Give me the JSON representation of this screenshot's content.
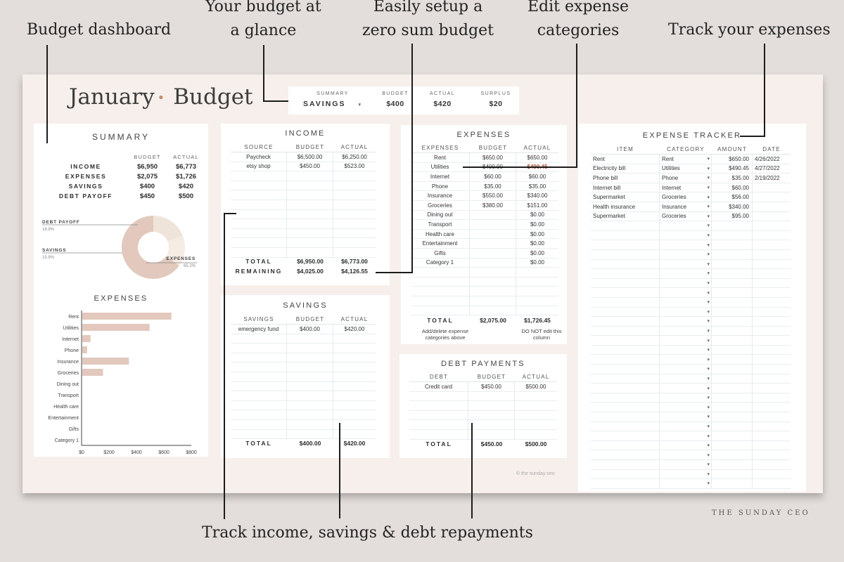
{
  "callouts": {
    "dashboard": "Budget dashboard",
    "glance": [
      "Your budget at",
      "a glance"
    ],
    "zero_sum": [
      "Easily setup a",
      "zero sum budget"
    ],
    "edit_cats": [
      "Edit expense",
      "categories"
    ],
    "track_expenses": "Track your expenses",
    "track_income": "Track income, savings & debt repayments"
  },
  "title": {
    "month": "January",
    "word": "Budget"
  },
  "topbox": {
    "summary_label": "Summary",
    "summary_value": "SAVINGS",
    "budget_label": "Budget",
    "budget_value": "$400",
    "actual_label": "Actual",
    "actual_value": "$420",
    "surplus_label": "Surplus",
    "surplus_value": "$20"
  },
  "summary": {
    "title": "Summary",
    "col_budget": "BUDGET",
    "col_actual": "ACTUAL",
    "rows": [
      {
        "label": "INCOME",
        "budget": "$6,950",
        "actual": "$6,773"
      },
      {
        "label": "EXPENSES",
        "budget": "$2,075",
        "actual": "$1,726"
      },
      {
        "label": "SAVINGS",
        "budget": "$400",
        "actual": "$420"
      },
      {
        "label": "DEBT PAYOFF",
        "budget": "$450",
        "actual": "$500"
      }
    ],
    "donut": [
      {
        "label": "DEBT PAYOFF",
        "pct": "18.9%",
        "value": 18.9,
        "color": "#efe4da"
      },
      {
        "label": "SAVINGS",
        "pct": "15.9%",
        "value": 15.9,
        "color": "#f5ece4"
      },
      {
        "label": "EXPENSES",
        "pct": "65.2%",
        "value": 65.2,
        "color": "#e2c8bd"
      }
    ],
    "expenses_title": "Expenses",
    "bars": [
      {
        "label": "Rent",
        "value": 650
      },
      {
        "label": "Utilities",
        "value": 490.45
      },
      {
        "label": "Internet",
        "value": 60
      },
      {
        "label": "Phone",
        "value": 35
      },
      {
        "label": "Insurance",
        "value": 340
      },
      {
        "label": "Groceries",
        "value": 151
      },
      {
        "label": "Dining out",
        "value": 0
      },
      {
        "label": "Transport",
        "value": 0
      },
      {
        "label": "Health care",
        "value": 0
      },
      {
        "label": "Entertainment",
        "value": 0
      },
      {
        "label": "Gifts",
        "value": 0
      },
      {
        "label": "Category 1",
        "value": 0
      }
    ],
    "bar_ticks": [
      "$0",
      "$200",
      "$400",
      "$600",
      "$800"
    ],
    "bar_max": 800,
    "bar_color": "#e3c8bd"
  },
  "income": {
    "title": "Income",
    "headers": [
      "SOURCE",
      "BUDGET",
      "ACTUAL"
    ],
    "rows": [
      [
        "Paycheck",
        "$6,500.00",
        "$6,250.00"
      ],
      [
        "etsy shop",
        "$450.00",
        "$523.00"
      ]
    ],
    "total_label": "TOTAL",
    "total_budget": "$6,950.00",
    "total_actual": "$6,773.00",
    "remaining_label": "REMAINING",
    "remaining_budget": "$4,025.00",
    "remaining_actual": "$4,126.55"
  },
  "savings": {
    "title": "Savings",
    "headers": [
      "SAVINGS",
      "BUDGET",
      "ACTUAL"
    ],
    "rows": [
      [
        "emergency fund",
        "$400.00",
        "$420.00"
      ]
    ],
    "total_label": "TOTAL",
    "total_budget": "$400.00",
    "total_actual": "$420.00"
  },
  "expenses": {
    "title": "Expenses",
    "headers": [
      "EXPENSES",
      "BUDGET",
      "ACTUAL"
    ],
    "rows": [
      [
        "Rent",
        "$650.00",
        "$650.00"
      ],
      [
        "Utilities",
        "$400.00",
        "$490.45"
      ],
      [
        "Internet",
        "$60.00",
        "$60.00"
      ],
      [
        "Phone",
        "$35.00",
        "$35.00"
      ],
      [
        "Insurance",
        "$550.00",
        "$340.00"
      ],
      [
        "Groceries",
        "$380.00",
        "$151.00"
      ],
      [
        "Dining out",
        "",
        "$0.00"
      ],
      [
        "Transport",
        "",
        "$0.00"
      ],
      [
        "Health care",
        "",
        "$0.00"
      ],
      [
        "Entertainment",
        "",
        "$0.00"
      ],
      [
        "Gifts",
        "",
        "$0.00"
      ],
      [
        "Category 1",
        "",
        "$0.00"
      ]
    ],
    "total_label": "TOTAL",
    "total_budget": "$2,075.00",
    "total_actual": "$1,726.45",
    "note_left": "Add/delete expense categories above",
    "note_right": "DO NOT edit this column"
  },
  "debt": {
    "title": "Debt Payments",
    "headers": [
      "DEBT",
      "BUDGET",
      "ACTUAL"
    ],
    "rows": [
      [
        "Credit card",
        "$450.00",
        "$500.00"
      ]
    ],
    "total_label": "TOTAL",
    "total_budget": "$450.00",
    "total_actual": "$500.00"
  },
  "tracker": {
    "title": "Expense Tracker",
    "headers": [
      "ITEM",
      "CATEGORY",
      "AMOUNT",
      "DATE"
    ],
    "rows": [
      [
        "Rent",
        "Rent",
        "$650.00",
        "4/26/2022"
      ],
      [
        "Electricity bill",
        "Utilities",
        "$490.45",
        "4/27/2022"
      ],
      [
        "Phone bill",
        "Phone",
        "$35.00",
        "2/19/2022"
      ],
      [
        "Internet bill",
        "Internet",
        "$60.00",
        ""
      ],
      [
        "Supermarket",
        "Groceries",
        "$56.00",
        ""
      ],
      [
        "Health insurance",
        "Insurance",
        "$340.00",
        ""
      ],
      [
        "Supermarket",
        "Groceries",
        "$95.00",
        ""
      ]
    ]
  },
  "copyright": "© the sunday ceo",
  "watermark": "THE SUNDAY CEO"
}
